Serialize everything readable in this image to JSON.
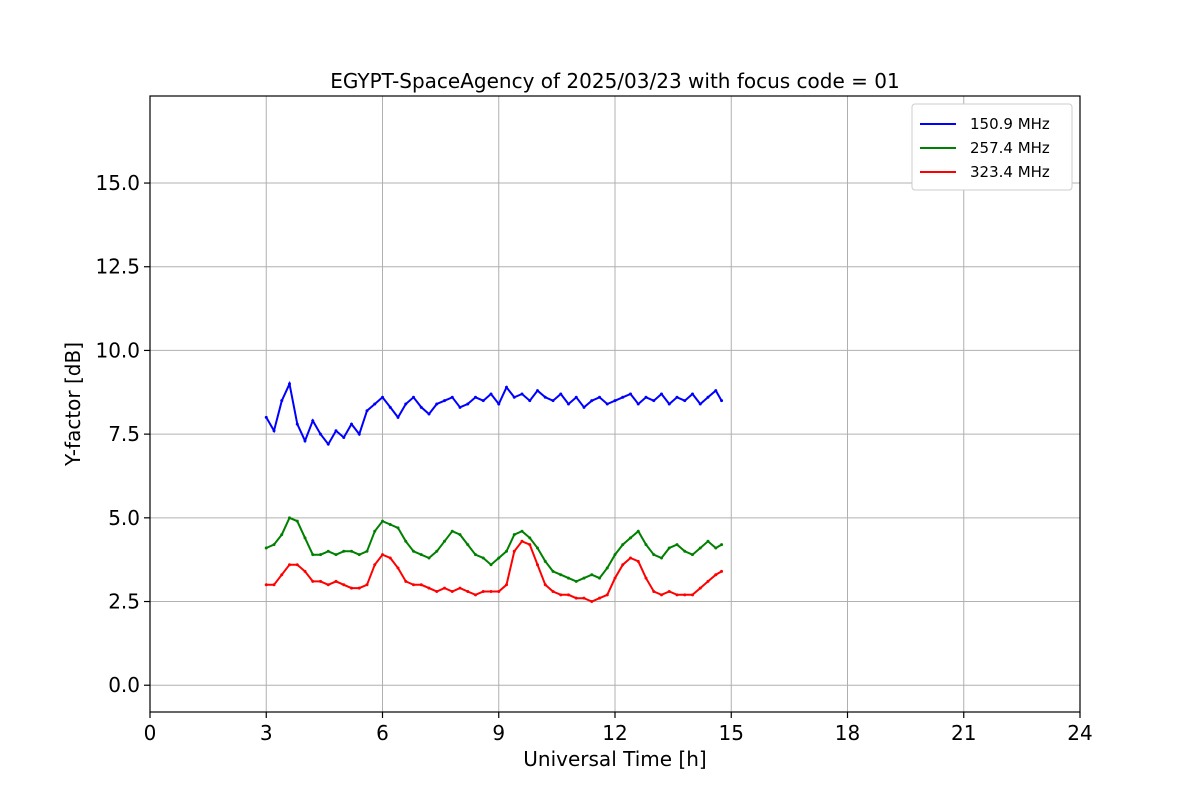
{
  "chart_data": {
    "type": "line",
    "title": "EGYPT-SpaceAgency of 2025/03/23 with focus code = 01",
    "xlabel": "Universal Time [h]",
    "ylabel": "Y-factor [dB]",
    "xlim": [
      0,
      24
    ],
    "ylim": [
      -0.8,
      17.6
    ],
    "xticks": [
      0,
      3,
      6,
      9,
      12,
      15,
      18,
      21,
      24
    ],
    "xtick_labels": [
      "0",
      "3",
      "6",
      "9",
      "12",
      "15",
      "18",
      "21",
      "24"
    ],
    "yticks": [
      0.0,
      2.5,
      5.0,
      7.5,
      10.0,
      12.5,
      15.0
    ],
    "ytick_labels": [
      "0.0",
      "2.5",
      "5.0",
      "7.5",
      "10.0",
      "12.5",
      "15.0"
    ],
    "grid": true,
    "legend_position": "top-right",
    "series": [
      {
        "name": "150.9 MHz",
        "color": "#0000ff",
        "x": [
          3.0,
          3.2,
          3.4,
          3.6,
          3.8,
          4.0,
          4.2,
          4.4,
          4.6,
          4.8,
          5.0,
          5.2,
          5.4,
          5.6,
          5.8,
          6.0,
          6.2,
          6.4,
          6.6,
          6.8,
          7.0,
          7.2,
          7.4,
          7.6,
          7.8,
          8.0,
          8.2,
          8.4,
          8.6,
          8.8,
          9.0,
          9.2,
          9.4,
          9.6,
          9.8,
          10.0,
          10.2,
          10.4,
          10.6,
          10.8,
          11.0,
          11.2,
          11.4,
          11.6,
          11.8,
          12.0,
          12.2,
          12.4,
          12.6,
          12.8,
          13.0,
          13.2,
          13.4,
          13.6,
          13.8,
          14.0,
          14.2,
          14.4,
          14.6,
          14.75
        ],
        "y": [
          8.0,
          7.6,
          8.5,
          9.0,
          7.8,
          7.3,
          7.9,
          7.5,
          7.2,
          7.6,
          7.4,
          7.8,
          7.5,
          8.2,
          8.4,
          8.6,
          8.3,
          8.0,
          8.4,
          8.6,
          8.3,
          8.1,
          8.4,
          8.5,
          8.6,
          8.3,
          8.4,
          8.6,
          8.5,
          8.7,
          8.4,
          8.9,
          8.6,
          8.7,
          8.5,
          8.8,
          8.6,
          8.5,
          8.7,
          8.4,
          8.6,
          8.3,
          8.5,
          8.6,
          8.4,
          8.5,
          8.6,
          8.7,
          8.4,
          8.6,
          8.5,
          8.7,
          8.4,
          8.6,
          8.5,
          8.7,
          8.4,
          8.6,
          8.8,
          8.5
        ]
      },
      {
        "name": "257.4 MHz",
        "color": "#008000",
        "x": [
          3.0,
          3.2,
          3.4,
          3.6,
          3.8,
          4.0,
          4.2,
          4.4,
          4.6,
          4.8,
          5.0,
          5.2,
          5.4,
          5.6,
          5.8,
          6.0,
          6.2,
          6.4,
          6.6,
          6.8,
          7.0,
          7.2,
          7.4,
          7.6,
          7.8,
          8.0,
          8.2,
          8.4,
          8.6,
          8.8,
          9.0,
          9.2,
          9.4,
          9.6,
          9.8,
          10.0,
          10.2,
          10.4,
          10.6,
          10.8,
          11.0,
          11.2,
          11.4,
          11.6,
          11.8,
          12.0,
          12.2,
          12.4,
          12.6,
          12.8,
          13.0,
          13.2,
          13.4,
          13.6,
          13.8,
          14.0,
          14.2,
          14.4,
          14.6,
          14.75
        ],
        "y": [
          4.1,
          4.2,
          4.5,
          5.0,
          4.9,
          4.4,
          3.9,
          3.9,
          4.0,
          3.9,
          4.0,
          4.0,
          3.9,
          4.0,
          4.6,
          4.9,
          4.8,
          4.7,
          4.3,
          4.0,
          3.9,
          3.8,
          4.0,
          4.3,
          4.6,
          4.5,
          4.2,
          3.9,
          3.8,
          3.6,
          3.8,
          4.0,
          4.5,
          4.6,
          4.4,
          4.1,
          3.7,
          3.4,
          3.3,
          3.2,
          3.1,
          3.2,
          3.3,
          3.2,
          3.5,
          3.9,
          4.2,
          4.4,
          4.6,
          4.2,
          3.9,
          3.8,
          4.1,
          4.2,
          4.0,
          3.9,
          4.1,
          4.3,
          4.1,
          4.2
        ]
      },
      {
        "name": "323.4 MHz",
        "color": "#ff0000",
        "x": [
          3.0,
          3.2,
          3.4,
          3.6,
          3.8,
          4.0,
          4.2,
          4.4,
          4.6,
          4.8,
          5.0,
          5.2,
          5.4,
          5.6,
          5.8,
          6.0,
          6.2,
          6.4,
          6.6,
          6.8,
          7.0,
          7.2,
          7.4,
          7.6,
          7.8,
          8.0,
          8.2,
          8.4,
          8.6,
          8.8,
          9.0,
          9.2,
          9.4,
          9.6,
          9.8,
          10.0,
          10.2,
          10.4,
          10.6,
          10.8,
          11.0,
          11.2,
          11.4,
          11.6,
          11.8,
          12.0,
          12.2,
          12.4,
          12.6,
          12.8,
          13.0,
          13.2,
          13.4,
          13.6,
          13.8,
          14.0,
          14.2,
          14.4,
          14.6,
          14.75
        ],
        "y": [
          3.0,
          3.0,
          3.3,
          3.6,
          3.6,
          3.4,
          3.1,
          3.1,
          3.0,
          3.1,
          3.0,
          2.9,
          2.9,
          3.0,
          3.6,
          3.9,
          3.8,
          3.5,
          3.1,
          3.0,
          3.0,
          2.9,
          2.8,
          2.9,
          2.8,
          2.9,
          2.8,
          2.7,
          2.8,
          2.8,
          2.8,
          3.0,
          4.0,
          4.3,
          4.2,
          3.6,
          3.0,
          2.8,
          2.7,
          2.7,
          2.6,
          2.6,
          2.5,
          2.6,
          2.7,
          3.2,
          3.6,
          3.8,
          3.7,
          3.2,
          2.8,
          2.7,
          2.8,
          2.7,
          2.7,
          2.7,
          2.9,
          3.1,
          3.3,
          3.4
        ]
      }
    ]
  }
}
